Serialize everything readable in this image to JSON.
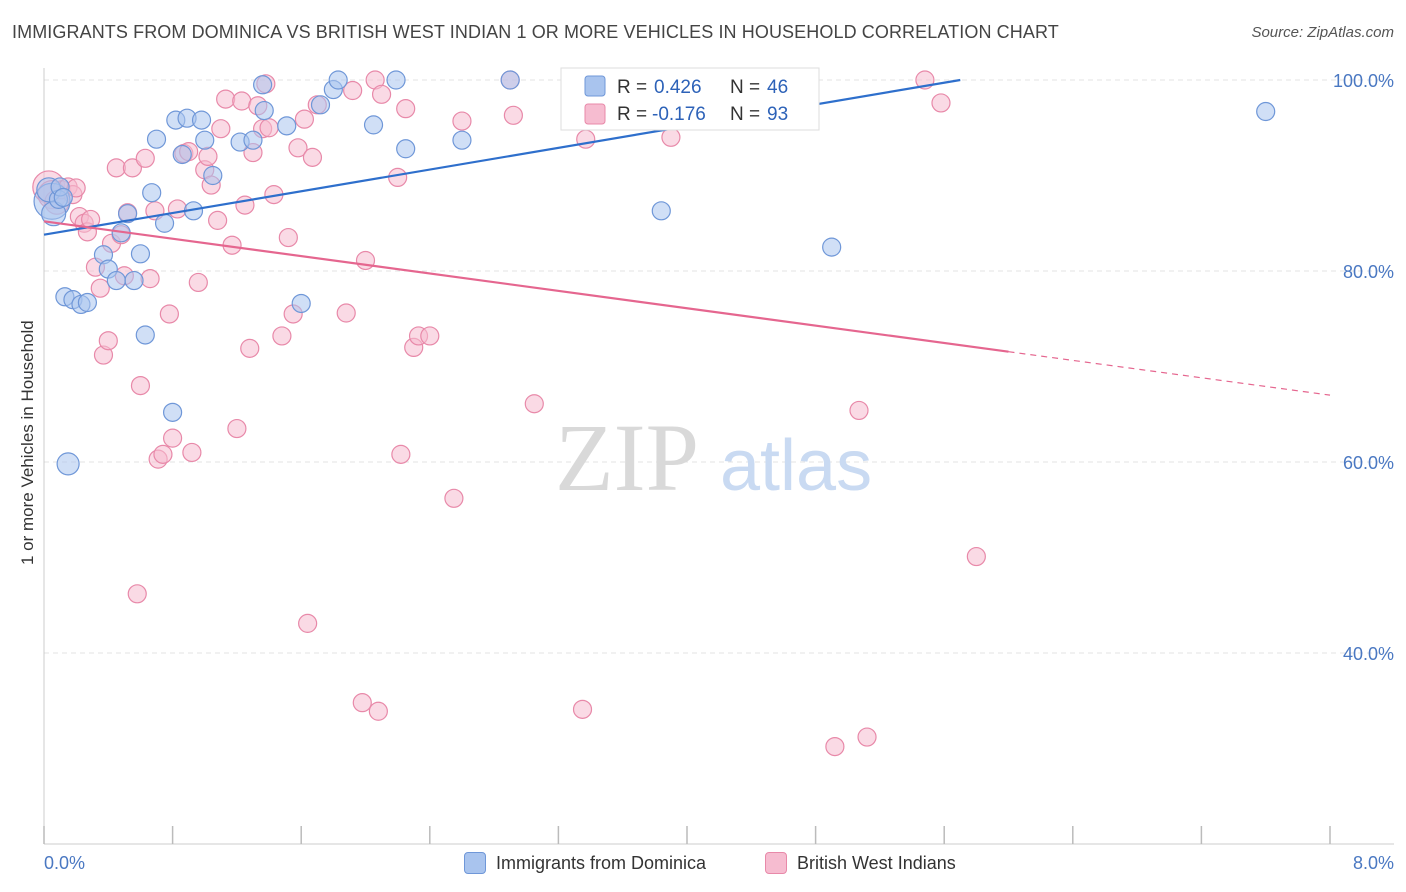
{
  "header": {
    "title": "IMMIGRANTS FROM DOMINICA VS BRITISH WEST INDIAN 1 OR MORE VEHICLES IN HOUSEHOLD CORRELATION CHART",
    "source": "Source: ZipAtlas.com"
  },
  "watermark": {
    "zip": "ZIP",
    "atlas": "atlas"
  },
  "colors": {
    "blue_fill": "#a9c4ee",
    "blue_stroke": "#6f97d8",
    "blue_line": "#2e6fcc",
    "pink_fill": "#f6bcd0",
    "pink_stroke": "#e889a9",
    "pink_line": "#e5668f",
    "tick_text": "#4a78c2",
    "grid": "#dddddd"
  },
  "chart_data": {
    "type": "scatter",
    "title": "IMMIGRANTS FROM DOMINICA VS BRITISH WEST INDIAN 1 OR MORE VEHICLES IN HOUSEHOLD CORRELATION CHART",
    "xlabel": "",
    "ylabel": "1 or more Vehicles in Household",
    "xlim": [
      0,
      8
    ],
    "ylim": [
      20,
      102
    ],
    "x_tick_labels": [
      "0.0%",
      "8.0%"
    ],
    "y_ticks": [
      40,
      60,
      80,
      100
    ],
    "y_tick_labels": [
      "40.0%",
      "60.0%",
      "80.0%",
      "100.0%"
    ],
    "legend": [
      {
        "label": "R = ",
        "r_value": "0.426",
        "n_label": "N = ",
        "n_value": "46"
      },
      {
        "label": "R = ",
        "r_value": "-0.176",
        "n_label": "N = ",
        "n_value": "93"
      }
    ],
    "series": [
      {
        "name": "Immigrants from Dominica",
        "color": "#6f97d8",
        "r": 0.426,
        "n": 46,
        "trend": {
          "x": [
            0.0,
            5.7
          ],
          "y": [
            83.8,
            100.0
          ],
          "solid_until": 5.7
        },
        "points": [
          [
            0.05,
            87.3,
            18
          ],
          [
            0.03,
            88.5,
            12
          ],
          [
            0.06,
            86.0,
            12
          ],
          [
            0.09,
            87.5,
            9
          ],
          [
            0.1,
            88.8,
            9
          ],
          [
            0.12,
            87.7,
            9
          ],
          [
            0.15,
            59.8,
            11
          ],
          [
            0.13,
            77.3,
            9
          ],
          [
            0.18,
            77.0,
            9
          ],
          [
            0.23,
            76.5,
            9
          ],
          [
            0.27,
            76.7,
            9
          ],
          [
            0.37,
            81.7,
            9
          ],
          [
            0.4,
            80.2,
            9
          ],
          [
            0.45,
            79.0,
            9
          ],
          [
            0.48,
            84.0,
            9
          ],
          [
            0.52,
            86.0,
            9
          ],
          [
            0.56,
            79.0,
            9
          ],
          [
            0.6,
            81.8,
            9
          ],
          [
            0.63,
            73.3,
            9
          ],
          [
            0.67,
            88.2,
            9
          ],
          [
            0.7,
            93.8,
            9
          ],
          [
            0.75,
            85.0,
            9
          ],
          [
            0.8,
            65.2,
            9
          ],
          [
            0.82,
            95.8,
            9
          ],
          [
            0.86,
            92.2,
            9
          ],
          [
            0.89,
            96.0,
            9
          ],
          [
            0.93,
            86.3,
            9
          ],
          [
            0.98,
            95.8,
            9
          ],
          [
            1.0,
            93.7,
            9
          ],
          [
            1.05,
            90.0,
            9
          ],
          [
            1.22,
            93.5,
            9
          ],
          [
            1.3,
            93.7,
            9
          ],
          [
            1.37,
            96.8,
            9
          ],
          [
            1.36,
            99.5,
            9
          ],
          [
            1.51,
            95.2,
            9
          ],
          [
            1.6,
            76.6,
            9
          ],
          [
            1.72,
            97.4,
            9
          ],
          [
            1.8,
            99.0,
            9
          ],
          [
            1.83,
            100.0,
            9
          ],
          [
            2.05,
            95.3,
            9
          ],
          [
            2.19,
            100.0,
            9
          ],
          [
            2.25,
            92.8,
            9
          ],
          [
            2.6,
            93.7,
            9
          ],
          [
            2.9,
            100.0,
            9
          ],
          [
            3.84,
            86.3,
            9
          ],
          [
            4.9,
            82.5,
            9
          ],
          [
            7.6,
            96.7,
            9
          ]
        ]
      },
      {
        "name": "British West Indians",
        "color": "#e889a9",
        "r": -0.176,
        "n": 93,
        "trend": {
          "x": [
            0.0,
            8.0
          ],
          "y": [
            85.2,
            67.0
          ],
          "solid_until": 6.0
        },
        "points": [
          [
            0.03,
            88.8,
            16
          ],
          [
            0.05,
            88.0,
            14
          ],
          [
            0.08,
            87.2,
            12
          ],
          [
            0.11,
            88.5,
            9
          ],
          [
            0.15,
            88.8,
            9
          ],
          [
            0.18,
            88.0,
            9
          ],
          [
            0.2,
            88.7,
            9
          ],
          [
            0.22,
            85.7,
            9
          ],
          [
            0.25,
            85.0,
            9
          ],
          [
            0.27,
            84.1,
            9
          ],
          [
            0.29,
            85.4,
            9
          ],
          [
            0.32,
            80.4,
            9
          ],
          [
            0.35,
            78.2,
            9
          ],
          [
            0.37,
            71.2,
            9
          ],
          [
            0.4,
            72.7,
            9
          ],
          [
            0.42,
            82.9,
            9
          ],
          [
            0.45,
            90.8,
            9
          ],
          [
            0.48,
            83.8,
            9
          ],
          [
            0.5,
            79.5,
            9
          ],
          [
            0.52,
            86.1,
            9
          ],
          [
            0.55,
            90.8,
            9
          ],
          [
            0.58,
            46.2,
            9
          ],
          [
            0.6,
            68.0,
            9
          ],
          [
            0.63,
            91.8,
            9
          ],
          [
            0.66,
            79.2,
            9
          ],
          [
            0.69,
            86.3,
            9
          ],
          [
            0.71,
            60.3,
            9
          ],
          [
            0.74,
            60.8,
            9
          ],
          [
            0.78,
            75.5,
            9
          ],
          [
            0.8,
            62.5,
            9
          ],
          [
            0.83,
            86.5,
            9
          ],
          [
            0.87,
            92.3,
            9
          ],
          [
            0.9,
            92.5,
            9
          ],
          [
            0.92,
            61.0,
            9
          ],
          [
            0.96,
            78.8,
            9
          ],
          [
            1.0,
            90.6,
            9
          ],
          [
            1.02,
            92.0,
            9
          ],
          [
            1.04,
            89.0,
            9
          ],
          [
            1.08,
            85.3,
            9
          ],
          [
            1.1,
            94.9,
            9
          ],
          [
            1.13,
            98.0,
            9
          ],
          [
            1.17,
            82.7,
            9
          ],
          [
            1.2,
            63.5,
            9
          ],
          [
            1.23,
            97.8,
            9
          ],
          [
            1.25,
            86.9,
            9
          ],
          [
            1.28,
            71.9,
            9
          ],
          [
            1.3,
            92.4,
            9
          ],
          [
            1.33,
            97.3,
            9
          ],
          [
            1.36,
            94.9,
            9
          ],
          [
            1.38,
            99.6,
            9
          ],
          [
            1.4,
            95.0,
            9
          ],
          [
            1.43,
            88.0,
            9
          ],
          [
            1.48,
            73.2,
            9
          ],
          [
            1.52,
            83.5,
            9
          ],
          [
            1.55,
            75.5,
            9
          ],
          [
            1.58,
            92.9,
            9
          ],
          [
            1.62,
            95.9,
            9
          ],
          [
            1.64,
            43.1,
            9
          ],
          [
            1.67,
            91.9,
            9
          ],
          [
            1.7,
            97.4,
            9
          ],
          [
            1.88,
            75.6,
            9
          ],
          [
            1.92,
            98.9,
            9
          ],
          [
            1.98,
            34.8,
            9
          ],
          [
            2.0,
            81.1,
            9
          ],
          [
            2.06,
            100.0,
            9
          ],
          [
            2.08,
            33.9,
            9
          ],
          [
            2.1,
            98.5,
            9
          ],
          [
            2.2,
            89.8,
            9
          ],
          [
            2.22,
            60.8,
            9
          ],
          [
            2.25,
            97.0,
            9
          ],
          [
            2.3,
            72.0,
            9
          ],
          [
            2.33,
            73.2,
            9
          ],
          [
            2.4,
            73.2,
            9
          ],
          [
            2.55,
            56.2,
            9
          ],
          [
            2.6,
            95.7,
            9
          ],
          [
            2.9,
            100.0,
            9
          ],
          [
            2.92,
            96.3,
            9
          ],
          [
            3.05,
            66.1,
            9
          ],
          [
            3.35,
            34.1,
            9
          ],
          [
            3.37,
            93.8,
            9
          ],
          [
            3.5,
            100.0,
            9
          ],
          [
            3.9,
            94.0,
            9
          ],
          [
            4.15,
            100.0,
            9
          ],
          [
            4.92,
            30.2,
            9
          ],
          [
            5.07,
            65.4,
            9
          ],
          [
            5.12,
            31.2,
            9
          ],
          [
            5.48,
            100.0,
            9
          ],
          [
            5.58,
            97.6,
            9
          ],
          [
            5.8,
            50.1,
            9
          ]
        ]
      }
    ]
  },
  "bottom_legend": {
    "series_a": "Immigrants from Dominica",
    "series_b": "British West Indians"
  }
}
